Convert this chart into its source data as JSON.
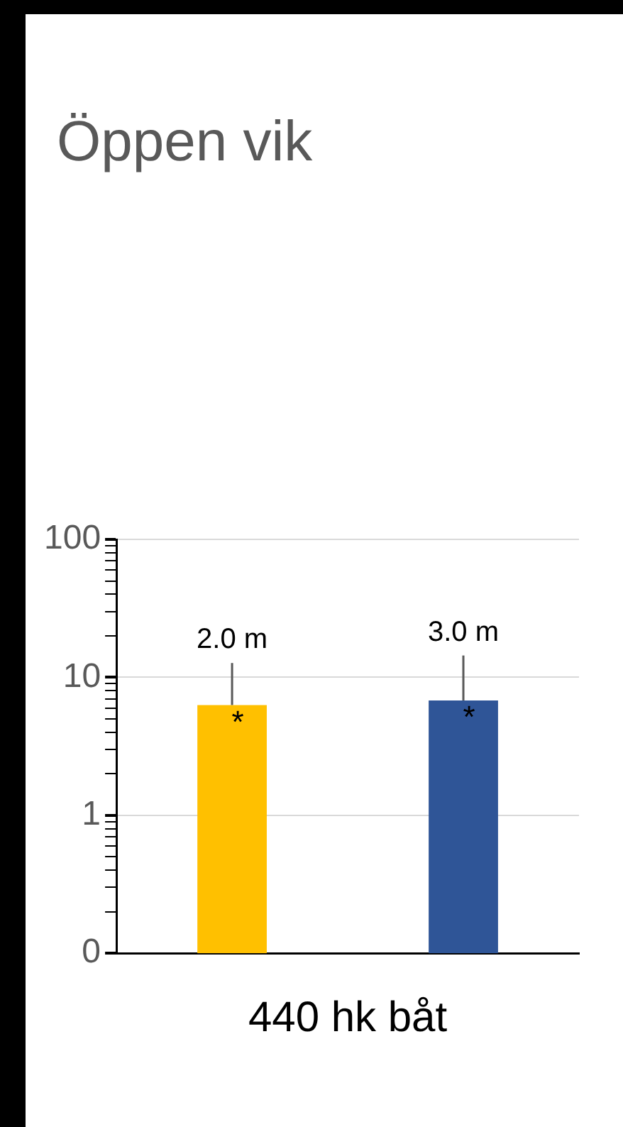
{
  "chart_data": {
    "type": "bar",
    "title": "Öppen vik",
    "xlabel": "440 hk båt",
    "categories": [
      null,
      null
    ],
    "values": [
      6.3,
      6.8
    ],
    "colors": [
      "#ffc000",
      "#2f5597"
    ],
    "errors": [
      [
        6.3,
        12.7
      ],
      [
        6.8,
        14.4
      ]
    ],
    "annotations": [
      "2.0 m",
      "3.0 m",
      "*",
      "*"
    ],
    "log": "y",
    "ylim": [
      0.1,
      100
    ],
    "yticks": [
      {
        "value": 0.1,
        "label": "0"
      },
      {
        "value": 0.2,
        "label": null
      },
      {
        "value": 0.3,
        "label": null
      },
      {
        "value": 0.4,
        "label": null
      },
      {
        "value": 0.5,
        "label": null
      },
      {
        "value": 0.6,
        "label": null
      },
      {
        "value": 0.7,
        "label": null
      },
      {
        "value": 0.8,
        "label": null
      },
      {
        "value": 0.9,
        "label": null
      },
      1,
      {
        "value": 2,
        "label": null
      },
      {
        "value": 3,
        "label": null
      },
      {
        "value": 4,
        "label": null
      },
      {
        "value": 5,
        "label": null
      },
      {
        "value": 6,
        "label": null
      },
      {
        "value": 7,
        "label": null
      },
      {
        "value": 8,
        "label": null
      },
      {
        "value": 9,
        "label": null
      },
      10,
      {
        "value": 20,
        "label": null
      },
      {
        "value": 30,
        "label": null
      },
      {
        "value": 40,
        "label": null
      },
      {
        "value": 50,
        "label": null
      },
      {
        "value": 60,
        "label": null
      },
      {
        "value": 70,
        "label": null
      },
      {
        "value": 80,
        "label": null
      },
      {
        "value": 90,
        "label": null
      },
      100
    ],
    "grid": "y",
    "legend": false
  }
}
